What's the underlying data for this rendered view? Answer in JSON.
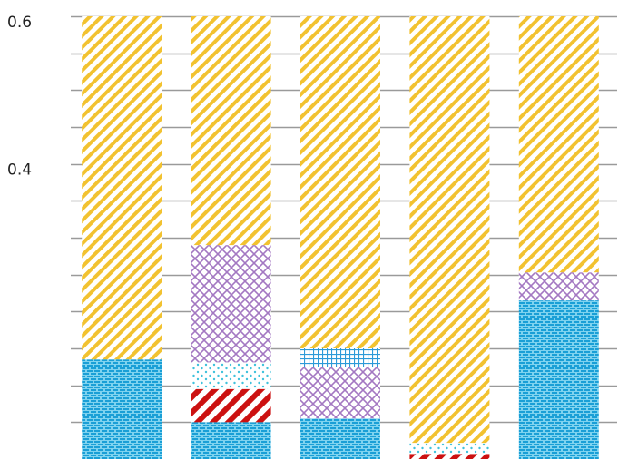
{
  "chart_data": {
    "type": "bar",
    "stacked": true,
    "title": "",
    "xlabel": "",
    "ylabel": "",
    "ylim": [
      0,
      0.6
    ],
    "ytick_labels": [
      "0.6",
      "0.4"
    ],
    "ytick_label_values": [
      0.6,
      0.4
    ],
    "grid": true,
    "legend": "none",
    "categories": [
      "",
      "",
      "",
      "",
      ""
    ],
    "series": [
      {
        "pattern": "cyan-bricks",
        "color": "#1a9fd6",
        "values": [
          0.135,
          0.05,
          0.055,
          0.0,
          0.215
        ]
      },
      {
        "pattern": "red-diagonal",
        "color": "#cc1111",
        "values": [
          0.0,
          0.045,
          0.0,
          0.007,
          0.0
        ]
      },
      {
        "pattern": "cyan-dots",
        "color": "#3fc2dc",
        "values": [
          0.0,
          0.036,
          0.0,
          0.015,
          0.0
        ]
      },
      {
        "pattern": "purple-crosshatch",
        "color": "#a378c2",
        "values": [
          0.0,
          0.159,
          0.07,
          0.0,
          0.038
        ]
      },
      {
        "pattern": "blue-grid",
        "color": "#2c9ad8",
        "values": [
          0.0,
          0.0,
          0.025,
          0.0,
          0.0
        ]
      },
      {
        "pattern": "yellow-diagonal",
        "color": "#f2c230",
        "values": [
          0.465,
          0.31,
          0.45,
          0.578,
          0.347
        ]
      }
    ]
  }
}
